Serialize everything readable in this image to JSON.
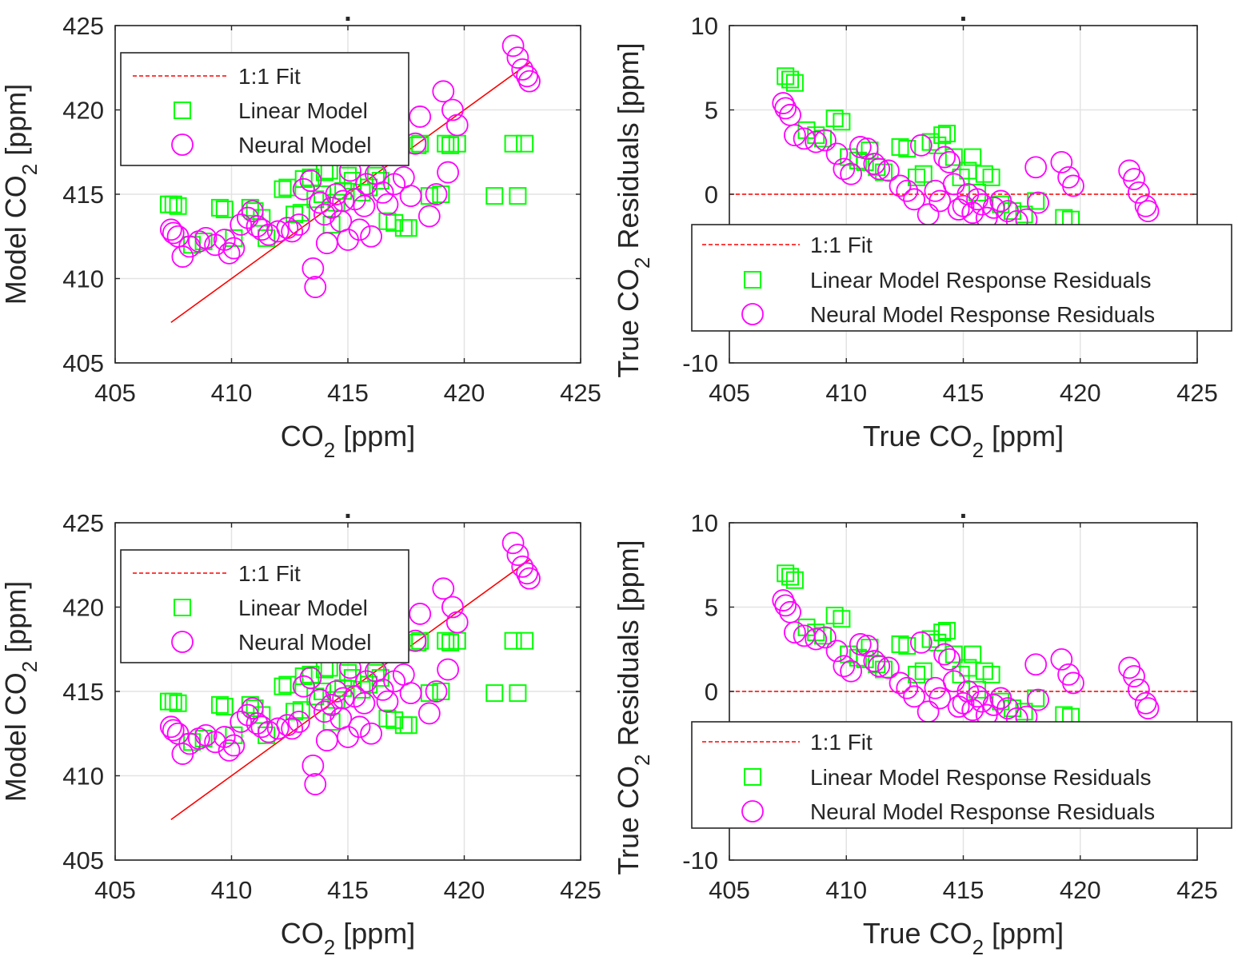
{
  "figure": {
    "layout": "2x2"
  },
  "chart_data": [
    {
      "type": "scatter",
      "title": ".",
      "xlabel": "CO",
      "xlabel_sub": "2",
      "xlabel_unit": " [ppm]",
      "ylabel": "Model CO",
      "ylabel_sub": "2",
      "ylabel_unit": " [ppm]",
      "xlim": [
        405,
        425
      ],
      "ylim": [
        405,
        425
      ],
      "xticks": [
        "405",
        "410",
        "415",
        "420",
        "425"
      ],
      "yticks": [
        "405",
        "410",
        "415",
        "420",
        "425"
      ],
      "grid": true,
      "legend": {
        "placement": "top-left"
      },
      "series": [
        {
          "name": "1:1 Fit",
          "kind": "line",
          "color": "#ff0000",
          "style": "dashed",
          "x": [
            407.4,
            422.8
          ],
          "y": [
            407.4,
            422.8
          ]
        },
        {
          "name": "Linear Model",
          "kind": "marker",
          "marker": "square",
          "color": "#00ff00",
          "x": [
            407.3,
            407.5,
            407.7,
            408.3,
            408.8,
            409.5,
            409.7,
            410.1,
            410.8,
            411.0,
            411.3,
            411.5,
            412.2,
            412.4,
            412.7,
            413.0,
            413.1,
            413.4,
            413.6,
            413.9,
            414.0,
            414.2,
            414.3,
            414.5,
            414.8,
            415.0,
            415.2,
            415.4,
            415.6,
            415.9,
            416.2,
            416.4,
            416.7,
            417.0,
            417.4,
            417.6,
            418.0,
            418.1,
            418.5,
            419.0,
            419.2,
            419.4,
            419.7,
            421.3,
            422.1,
            422.3,
            422.6
          ],
          "y": [
            414.4,
            414.4,
            414.3,
            412.0,
            412.2,
            414.2,
            414.1,
            412.4,
            414.2,
            414.0,
            413.6,
            412.4,
            415.3,
            415.4,
            413.8,
            413.9,
            415.9,
            416.0,
            414.7,
            415.0,
            416.3,
            416.4,
            413.2,
            414.5,
            415.2,
            416.1,
            415.8,
            417.2,
            415.1,
            415.4,
            416.1,
            415.8,
            413.4,
            413.3,
            413.0,
            413.0,
            417.9,
            418.0,
            414.9,
            415.0,
            418.0,
            417.9,
            418.0,
            414.9,
            418.0,
            414.9,
            418.0
          ]
        },
        {
          "name": "Neural Model",
          "kind": "marker",
          "marker": "circle",
          "color": "#ff00ff",
          "x": [
            407.4,
            407.5,
            407.7,
            407.9,
            408.2,
            408.6,
            408.9,
            409.3,
            409.7,
            409.9,
            410.1,
            410.4,
            410.7,
            410.9,
            411.1,
            411.3,
            411.6,
            412.0,
            412.4,
            412.6,
            412.9,
            413.1,
            413.4,
            413.5,
            413.6,
            413.8,
            414.0,
            414.1,
            414.3,
            414.5,
            414.7,
            414.8,
            415.0,
            415.1,
            415.3,
            415.5,
            415.7,
            415.8,
            416.0,
            416.2,
            416.5,
            416.7,
            417.0,
            417.4,
            417.7,
            417.9,
            418.1,
            418.5,
            418.8,
            419.1,
            419.3,
            419.5,
            419.7,
            422.1,
            422.3,
            422.5,
            422.7,
            422.8
          ],
          "y": [
            412.9,
            412.7,
            412.5,
            411.3,
            411.9,
            412.2,
            412.4,
            412.0,
            412.3,
            411.5,
            411.8,
            413.2,
            413.6,
            414.0,
            413.1,
            412.9,
            412.6,
            412.8,
            413.0,
            412.8,
            413.2,
            415.3,
            415.8,
            410.6,
            409.5,
            414.5,
            413.8,
            412.1,
            414.2,
            415.0,
            413.4,
            414.6,
            412.3,
            416.4,
            414.7,
            412.9,
            414.3,
            415.6,
            412.5,
            416.2,
            415.1,
            414.4,
            415.6,
            416.0,
            414.9,
            418.0,
            419.6,
            413.7,
            415.0,
            421.1,
            416.3,
            420.0,
            419.1,
            423.8,
            423.1,
            422.4,
            422.0,
            421.7
          ]
        }
      ]
    },
    {
      "type": "scatter",
      "title": ".",
      "xlabel": "True CO",
      "xlabel_sub": "2",
      "xlabel_unit": " [ppm]",
      "ylabel": "True CO",
      "ylabel_sub": "2",
      "ylabel_unit": " Residuals [ppm]",
      "xlim": [
        405,
        425
      ],
      "ylim": [
        -10,
        10
      ],
      "xticks": [
        "405",
        "410",
        "415",
        "420",
        "425"
      ],
      "yticks": [
        "-10",
        "-5",
        "0",
        "5",
        "10"
      ],
      "grid": true,
      "legend": {
        "placement": "bottom-right"
      },
      "series": [
        {
          "name": "1:1 Fit",
          "kind": "line",
          "color": "#ff0000",
          "style": "dashed",
          "x": [
            405,
            425
          ],
          "y": [
            0,
            0
          ]
        },
        {
          "name": "Linear Model Response Residuals",
          "kind": "marker",
          "marker": "square",
          "color": "#00ff00",
          "x": [
            407.4,
            407.6,
            407.8,
            408.3,
            408.7,
            409.0,
            409.5,
            409.8,
            410.1,
            410.5,
            410.8,
            411.0,
            411.3,
            411.6,
            412.3,
            412.6,
            413.0,
            413.3,
            413.6,
            413.9,
            414.1,
            414.3,
            414.6,
            414.9,
            415.2,
            415.4,
            415.6,
            415.9,
            416.2,
            416.6,
            417.1,
            417.6,
            418.1,
            419.3,
            419.6
          ],
          "y": [
            7.0,
            6.8,
            6.6,
            3.8,
            3.5,
            3.3,
            4.5,
            4.3,
            2.2,
            2.0,
            1.9,
            2.6,
            1.6,
            1.3,
            2.8,
            2.7,
            1.0,
            1.2,
            3.1,
            2.9,
            3.5,
            3.6,
            2.2,
            1.0,
            1.4,
            2.2,
            0.1,
            1.2,
            1.0,
            -0.6,
            -1.0,
            -1.2,
            -0.4,
            -1.4,
            -1.5
          ]
        },
        {
          "name": "Neural Model Response Residuals",
          "kind": "marker",
          "marker": "circle",
          "color": "#ff00ff",
          "x": [
            407.3,
            407.4,
            407.6,
            407.8,
            408.2,
            408.7,
            409.1,
            409.6,
            409.9,
            410.2,
            410.6,
            410.9,
            411.2,
            411.4,
            411.8,
            412.3,
            412.6,
            412.9,
            413.2,
            413.5,
            413.8,
            414.0,
            414.2,
            414.4,
            414.6,
            414.8,
            415.0,
            415.2,
            415.4,
            415.6,
            415.8,
            416.0,
            416.3,
            416.6,
            416.9,
            417.3,
            417.7,
            418.1,
            418.2,
            419.2,
            419.5,
            419.7,
            422.1,
            422.3,
            422.5,
            422.8,
            422.9
          ],
          "y": [
            5.4,
            5.1,
            4.7,
            3.5,
            3.3,
            3.1,
            3.2,
            2.4,
            1.5,
            1.2,
            2.8,
            2.7,
            1.8,
            1.5,
            1.4,
            0.5,
            0.2,
            -0.3,
            2.9,
            -1.2,
            0.2,
            -0.4,
            2.2,
            1.9,
            0.6,
            -0.9,
            -0.7,
            0.0,
            -1.1,
            -0.3,
            -0.6,
            -1.4,
            -0.8,
            -0.4,
            -1.0,
            -1.6,
            -1.5,
            1.6,
            -0.5,
            1.9,
            1.0,
            0.5,
            1.4,
            0.9,
            0.1,
            -0.7,
            -1.0
          ]
        }
      ]
    },
    {
      "type": "scatter",
      "title": ".",
      "xlabel": "CO",
      "xlabel_sub": "2",
      "xlabel_unit": " [ppm]",
      "ylabel": "Model CO",
      "ylabel_sub": "2",
      "ylabel_unit": " [ppm]",
      "xlim": [
        405,
        425
      ],
      "ylim": [
        405,
        425
      ],
      "xticks": [
        "405",
        "410",
        "415",
        "420",
        "425"
      ],
      "yticks": [
        "405",
        "410",
        "415",
        "420",
        "425"
      ],
      "grid": true,
      "legend": {
        "placement": "top-left"
      },
      "series": [
        {
          "name": "1:1 Fit",
          "kind": "line",
          "color": "#ff0000",
          "style": "dashed",
          "x": [
            407.4,
            422.8
          ],
          "y": [
            407.4,
            422.8
          ]
        },
        {
          "name": "Linear Model",
          "kind": "marker",
          "marker": "square",
          "color": "#00ff00",
          "x": [
            407.3,
            407.5,
            407.7,
            408.3,
            408.8,
            409.5,
            409.7,
            410.1,
            410.8,
            411.0,
            411.3,
            411.5,
            412.2,
            412.4,
            412.7,
            413.0,
            413.1,
            413.4,
            413.6,
            413.9,
            414.0,
            414.2,
            414.3,
            414.5,
            414.8,
            415.0,
            415.2,
            415.4,
            415.6,
            415.9,
            416.2,
            416.4,
            416.7,
            417.0,
            417.4,
            417.6,
            418.0,
            418.1,
            418.5,
            419.0,
            419.2,
            419.4,
            419.7,
            421.3,
            422.1,
            422.3,
            422.6
          ],
          "y": [
            414.4,
            414.4,
            414.3,
            412.0,
            412.2,
            414.2,
            414.1,
            412.4,
            414.2,
            414.0,
            413.6,
            412.4,
            415.3,
            415.4,
            413.8,
            413.9,
            415.9,
            416.0,
            414.7,
            415.0,
            416.3,
            416.4,
            413.2,
            414.5,
            415.2,
            416.1,
            415.8,
            417.2,
            415.1,
            415.4,
            416.1,
            415.8,
            413.4,
            413.3,
            413.0,
            413.0,
            417.9,
            418.0,
            414.9,
            415.0,
            418.0,
            417.9,
            418.0,
            414.9,
            418.0,
            414.9,
            418.0
          ]
        },
        {
          "name": "Neural Model",
          "kind": "marker",
          "marker": "circle",
          "color": "#ff00ff",
          "x": [
            407.4,
            407.5,
            407.7,
            407.9,
            408.2,
            408.6,
            408.9,
            409.3,
            409.7,
            409.9,
            410.1,
            410.4,
            410.7,
            410.9,
            411.1,
            411.3,
            411.6,
            412.0,
            412.4,
            412.6,
            412.9,
            413.1,
            413.4,
            413.5,
            413.6,
            413.8,
            414.0,
            414.1,
            414.3,
            414.5,
            414.7,
            414.8,
            415.0,
            415.1,
            415.3,
            415.5,
            415.7,
            415.8,
            416.0,
            416.2,
            416.5,
            416.7,
            417.0,
            417.4,
            417.7,
            417.9,
            418.1,
            418.5,
            418.8,
            419.1,
            419.3,
            419.5,
            419.7,
            422.1,
            422.3,
            422.5,
            422.7,
            422.8
          ],
          "y": [
            412.9,
            412.7,
            412.5,
            411.3,
            411.9,
            412.2,
            412.4,
            412.0,
            412.3,
            411.5,
            411.8,
            413.2,
            413.6,
            414.0,
            413.1,
            412.9,
            412.6,
            412.8,
            413.0,
            412.8,
            413.2,
            415.3,
            415.8,
            410.6,
            409.5,
            414.5,
            413.8,
            412.1,
            414.2,
            415.0,
            413.4,
            414.6,
            412.3,
            416.4,
            414.7,
            412.9,
            414.3,
            415.6,
            412.5,
            416.2,
            415.1,
            414.4,
            415.6,
            416.0,
            414.9,
            418.0,
            419.6,
            413.7,
            415.0,
            421.1,
            416.3,
            420.0,
            419.1,
            423.8,
            423.1,
            422.4,
            422.0,
            421.7
          ]
        }
      ]
    },
    {
      "type": "scatter",
      "title": ".",
      "xlabel": "True CO",
      "xlabel_sub": "2",
      "xlabel_unit": " [ppm]",
      "ylabel": "True CO",
      "ylabel_sub": "2",
      "ylabel_unit": " Residuals [ppm]",
      "xlim": [
        405,
        425
      ],
      "ylim": [
        -10,
        10
      ],
      "xticks": [
        "405",
        "410",
        "415",
        "420",
        "425"
      ],
      "yticks": [
        "-10",
        "-5",
        "0",
        "5",
        "10"
      ],
      "grid": true,
      "legend": {
        "placement": "bottom-right"
      },
      "series": [
        {
          "name": "1:1 Fit",
          "kind": "line",
          "color": "#ff0000",
          "style": "dashed",
          "x": [
            405,
            425
          ],
          "y": [
            0,
            0
          ]
        },
        {
          "name": "Linear Model Response Residuals",
          "kind": "marker",
          "marker": "square",
          "color": "#00ff00",
          "x": [
            407.4,
            407.6,
            407.8,
            408.3,
            408.7,
            409.0,
            409.5,
            409.8,
            410.1,
            410.5,
            410.8,
            411.0,
            411.3,
            411.6,
            412.3,
            412.6,
            413.0,
            413.3,
            413.6,
            413.9,
            414.1,
            414.3,
            414.6,
            414.9,
            415.2,
            415.4,
            415.6,
            415.9,
            416.2,
            416.6,
            417.1,
            417.6,
            418.1,
            419.3,
            419.6
          ],
          "y": [
            7.0,
            6.8,
            6.6,
            3.8,
            3.5,
            3.3,
            4.5,
            4.3,
            2.2,
            2.0,
            1.9,
            2.6,
            1.6,
            1.3,
            2.8,
            2.7,
            1.0,
            1.2,
            3.1,
            2.9,
            3.5,
            3.6,
            2.2,
            1.0,
            1.4,
            2.2,
            0.1,
            1.2,
            1.0,
            -0.6,
            -1.0,
            -1.2,
            -0.4,
            -1.4,
            -1.5
          ]
        },
        {
          "name": "Neural Model Response Residuals",
          "kind": "marker",
          "marker": "circle",
          "color": "#ff00ff",
          "x": [
            407.3,
            407.4,
            407.6,
            407.8,
            408.2,
            408.7,
            409.1,
            409.6,
            409.9,
            410.2,
            410.6,
            410.9,
            411.2,
            411.4,
            411.8,
            412.3,
            412.6,
            412.9,
            413.2,
            413.5,
            413.8,
            414.0,
            414.2,
            414.4,
            414.6,
            414.8,
            415.0,
            415.2,
            415.4,
            415.6,
            415.8,
            416.0,
            416.3,
            416.6,
            416.9,
            417.3,
            417.7,
            418.1,
            418.2,
            419.2,
            419.5,
            419.7,
            422.1,
            422.3,
            422.5,
            422.8,
            422.9
          ],
          "y": [
            5.4,
            5.1,
            4.7,
            3.5,
            3.3,
            3.1,
            3.2,
            2.4,
            1.5,
            1.2,
            2.8,
            2.7,
            1.8,
            1.5,
            1.4,
            0.5,
            0.2,
            -0.3,
            2.9,
            -1.2,
            0.2,
            -0.4,
            2.2,
            1.9,
            0.6,
            -0.9,
            -0.7,
            0.0,
            -1.1,
            -0.3,
            -0.6,
            -1.4,
            -0.8,
            -0.4,
            -1.0,
            -1.6,
            -1.5,
            1.6,
            -0.5,
            1.9,
            1.0,
            0.5,
            1.4,
            0.9,
            0.1,
            -0.7,
            -1.0
          ]
        }
      ]
    }
  ]
}
